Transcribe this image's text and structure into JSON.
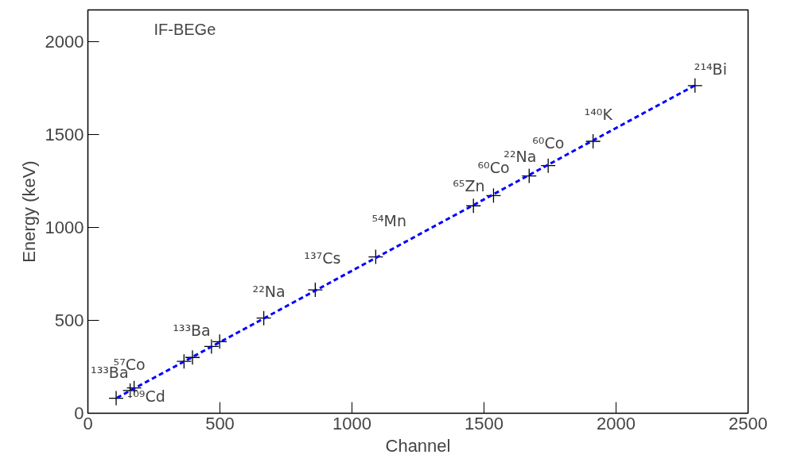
{
  "chart_data": {
    "type": "scatter",
    "title": "IF-BEGe",
    "xlabel": "Channel",
    "ylabel": "Energy (keV)",
    "xlim": [
      0,
      2500
    ],
    "xticks": [
      0,
      500,
      1000,
      1500,
      2000,
      2500
    ],
    "ylim": [
      0,
      2170
    ],
    "yticks": [
      0,
      500,
      1000,
      1500,
      2000
    ],
    "grid": false,
    "series": [
      {
        "marker": "cross",
        "color": "#000000",
        "x": [
          107,
          160,
          175,
          364,
          396,
          468,
          499,
          666,
          861,
          1090,
          1460,
          1536,
          1671,
          1743,
          1913,
          2299
        ],
        "values": [
          81,
          122,
          136,
          279,
          300,
          359,
          385,
          512,
          664,
          841,
          1116,
          1171,
          1277,
          1332,
          1463,
          1763
        ]
      },
      {
        "type": "line",
        "color": "#0000ff",
        "line_style": "dashed",
        "x": [
          110,
          2300
        ],
        "values": [
          83,
          1765
        ]
      }
    ],
    "annotations": [
      {
        "text": "¹³³Ba",
        "x": 107,
        "y": 81
      },
      {
        "text": "⁵⁷Co",
        "x": 160,
        "y": 122
      },
      {
        "text": "¹⁰⁹Cd",
        "x": 175,
        "y": 136
      },
      {
        "text": "¹³³Ba",
        "x": 499,
        "y": 385
      },
      {
        "text": "²²Na",
        "x": 666,
        "y": 512
      },
      {
        "text": "¹³⁷Cs",
        "x": 861,
        "y": 664
      },
      {
        "text": "⁵⁴Mn",
        "x": 1090,
        "y": 841
      },
      {
        "text": "⁶⁵Zn",
        "x": 1460,
        "y": 1116
      },
      {
        "text": "⁶⁰Co",
        "x": 1536,
        "y": 1171
      },
      {
        "text": "²²Na",
        "x": 1671,
        "y": 1277
      },
      {
        "text": "⁶⁰Co",
        "x": 1743,
        "y": 1332
      },
      {
        "text": "¹⁴⁰K",
        "x": 1913,
        "y": 1463
      },
      {
        "text": "²¹⁴Bi",
        "x": 2299,
        "y": 1763
      }
    ]
  }
}
